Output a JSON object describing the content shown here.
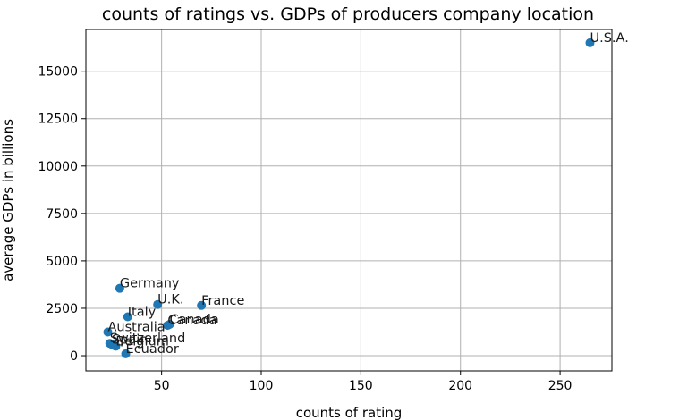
{
  "chart_data": {
    "type": "scatter",
    "title": "counts of ratings vs. GDPs of producers company location",
    "xlabel": "counts of rating",
    "ylabel": "average GDPs in billions",
    "xlim": [
      12,
      276
    ],
    "ylim": [
      -800,
      17200
    ],
    "xticks": [
      50,
      100,
      150,
      200,
      250
    ],
    "yticks": [
      0,
      2500,
      5000,
      7500,
      10000,
      12500,
      15000
    ],
    "grid": true,
    "point_color": "#1f77b4",
    "points": [
      {
        "label": "U.S.A.",
        "x": 265,
        "y": 16500
      },
      {
        "label": "Germany",
        "x": 29,
        "y": 3550
      },
      {
        "label": "U.K.",
        "x": 48,
        "y": 2700
      },
      {
        "label": "France",
        "x": 70,
        "y": 2650
      },
      {
        "label": "Italy",
        "x": 33,
        "y": 2050
      },
      {
        "label": "Canada",
        "x": 53,
        "y": 1600
      },
      {
        "label": "Canada",
        "x": 54,
        "y": 1650
      },
      {
        "label": "Australia",
        "x": 23,
        "y": 1250
      },
      {
        "label": "Switzerland",
        "x": 24,
        "y": 650
      },
      {
        "label": "Belgium",
        "x": 27,
        "y": 500
      },
      {
        "label": "Spain",
        "x": 25,
        "y": 600
      },
      {
        "label": "Ecuador",
        "x": 32,
        "y": 100
      }
    ]
  }
}
